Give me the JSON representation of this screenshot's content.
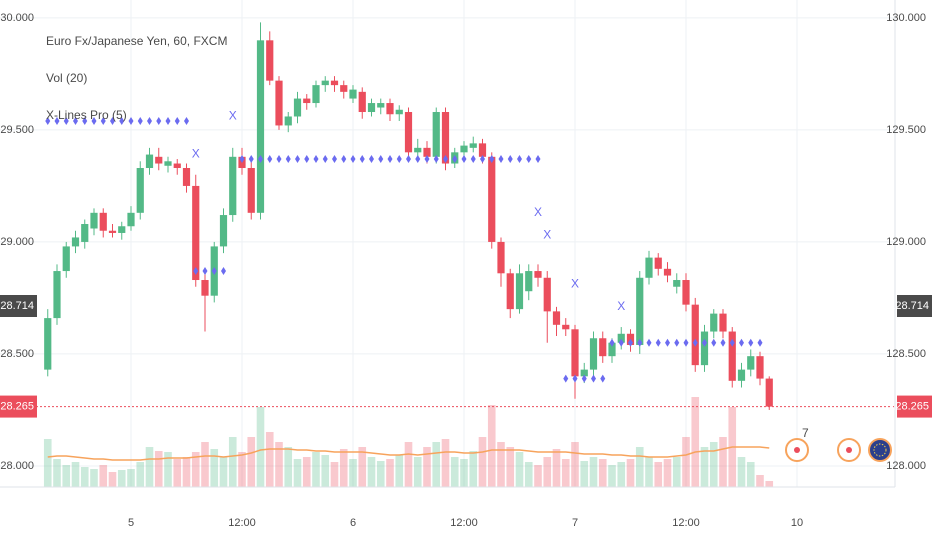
{
  "chart_data": {
    "type": "candlestick",
    "title": "Euro Fx/Japanese Yen, 60, FXCM",
    "volume_title": "Vol (20)",
    "indicator_title": "X-Lines Pro (5)",
    "event_badge": "7",
    "categories": [
      null,
      null,
      null,
      null,
      null,
      null,
      null,
      null,
      null,
      "5",
      null,
      null,
      null,
      null,
      null,
      null,
      null,
      null,
      null,
      null,
      null,
      "12:00",
      null,
      null,
      null,
      null,
      null,
      null,
      null,
      null,
      null,
      null,
      null,
      "6",
      null,
      null,
      null,
      null,
      null,
      null,
      null,
      null,
      null,
      null,
      null,
      "12:00",
      null,
      null,
      null,
      null,
      null,
      null,
      null,
      null,
      null,
      null,
      null,
      "7",
      null,
      null,
      null,
      null,
      null,
      null,
      null,
      null,
      null,
      null,
      null,
      "12:00",
      null,
      null,
      null,
      null,
      null,
      null,
      null,
      null,
      null,
      null,
      null,
      "10"
    ],
    "open": [
      128.43,
      128.66,
      128.87,
      128.98,
      129.0,
      129.06,
      129.13,
      129.05,
      129.04,
      129.07,
      129.13,
      129.33,
      129.38,
      129.34,
      129.35,
      129.33,
      129.25,
      128.83,
      128.76,
      128.98,
      129.12,
      129.38,
      129.33,
      129.13,
      129.9,
      129.72,
      129.52,
      129.56,
      129.64,
      129.62,
      129.7,
      129.72,
      129.7,
      129.64,
      129.67,
      129.58,
      129.6,
      129.62,
      129.57,
      129.58,
      129.4,
      129.42,
      129.38,
      129.58,
      129.35,
      129.4,
      129.42,
      129.44,
      129.38,
      129.0,
      128.86,
      128.7,
      128.78,
      128.87,
      128.84,
      128.69,
      128.63,
      128.61,
      128.4,
      128.43,
      128.57,
      128.49,
      128.55,
      128.59,
      128.54,
      128.84,
      128.93,
      128.88,
      128.8,
      128.83,
      128.72,
      128.45,
      128.6,
      128.68,
      128.6,
      128.38,
      128.43,
      128.49,
      128.39,
      null,
      null,
      null
    ],
    "high": [
      128.7,
      128.9,
      129.0,
      129.05,
      129.1,
      129.15,
      129.15,
      129.08,
      129.09,
      129.16,
      129.36,
      129.42,
      129.42,
      129.38,
      129.37,
      129.35,
      129.3,
      128.88,
      129.0,
      129.15,
      129.42,
      129.42,
      129.36,
      129.98,
      129.94,
      129.74,
      129.58,
      129.67,
      129.66,
      129.72,
      129.74,
      129.74,
      129.72,
      129.7,
      129.69,
      129.64,
      129.64,
      129.64,
      129.61,
      129.6,
      129.46,
      129.45,
      129.6,
      129.6,
      129.42,
      129.45,
      129.47,
      129.46,
      129.4,
      129.02,
      128.88,
      128.9,
      128.9,
      128.9,
      128.87,
      128.71,
      128.66,
      128.63,
      128.46,
      128.6,
      128.6,
      128.57,
      128.62,
      128.61,
      128.87,
      128.96,
      128.95,
      128.91,
      128.86,
      128.86,
      128.75,
      128.63,
      128.7,
      128.7,
      128.62,
      128.46,
      128.52,
      128.51,
      128.4,
      null,
      null,
      null
    ],
    "low": [
      128.4,
      128.63,
      128.84,
      128.95,
      128.97,
      129.03,
      129.02,
      129.02,
      129.01,
      129.05,
      129.1,
      129.3,
      129.32,
      129.31,
      129.3,
      129.22,
      128.8,
      128.6,
      128.73,
      128.95,
      129.09,
      129.3,
      129.1,
      129.1,
      129.7,
      129.5,
      129.49,
      129.53,
      129.59,
      129.6,
      129.67,
      129.67,
      129.64,
      129.62,
      129.55,
      129.56,
      129.57,
      129.54,
      129.54,
      129.37,
      129.37,
      129.35,
      129.35,
      129.32,
      129.33,
      129.37,
      129.4,
      129.35,
      128.97,
      128.8,
      128.66,
      128.68,
      128.74,
      128.8,
      128.55,
      128.58,
      128.58,
      128.3,
      128.37,
      128.4,
      128.46,
      128.46,
      128.52,
      128.51,
      128.5,
      128.81,
      128.85,
      128.82,
      128.77,
      128.69,
      128.42,
      128.42,
      128.57,
      128.57,
      128.35,
      128.35,
      128.4,
      128.36,
      128.25,
      null,
      null,
      null
    ],
    "close": [
      128.66,
      128.87,
      128.98,
      129.02,
      129.08,
      129.13,
      129.05,
      129.04,
      129.07,
      129.13,
      129.33,
      129.39,
      129.35,
      129.36,
      129.33,
      129.25,
      128.83,
      128.76,
      128.98,
      129.12,
      129.38,
      129.33,
      129.13,
      129.9,
      129.72,
      129.52,
      129.56,
      129.64,
      129.62,
      129.7,
      129.72,
      129.7,
      129.67,
      129.68,
      129.58,
      129.62,
      129.62,
      129.57,
      129.59,
      129.4,
      129.42,
      129.38,
      129.58,
      129.35,
      129.4,
      129.43,
      129.44,
      129.38,
      129.0,
      128.86,
      128.7,
      128.86,
      128.87,
      128.84,
      128.69,
      128.63,
      128.61,
      128.4,
      128.43,
      128.57,
      128.49,
      128.55,
      128.59,
      128.54,
      128.84,
      128.93,
      128.88,
      128.85,
      128.83,
      128.72,
      128.45,
      128.6,
      128.68,
      128.6,
      128.38,
      128.43,
      128.49,
      128.39,
      128.265,
      null,
      null,
      null
    ],
    "volume": [
      48,
      28,
      22,
      25,
      20,
      18,
      22,
      15,
      17,
      18,
      25,
      40,
      36,
      35,
      28,
      30,
      35,
      45,
      38,
      30,
      50,
      35,
      50,
      80,
      55,
      45,
      40,
      28,
      30,
      35,
      32,
      25,
      38,
      28,
      40,
      30,
      26,
      28,
      32,
      45,
      30,
      40,
      45,
      48,
      30,
      28,
      36,
      50,
      82,
      45,
      40,
      35,
      25,
      22,
      30,
      38,
      28,
      45,
      26,
      30,
      28,
      22,
      25,
      28,
      40,
      30,
      25,
      28,
      30,
      50,
      90,
      40,
      45,
      50,
      80,
      30,
      25,
      12,
      6,
      null,
      null,
      null
    ],
    "volume_ma": [
      30,
      31,
      31,
      30,
      29,
      28,
      28,
      27,
      27,
      27,
      27,
      28,
      28,
      29,
      29,
      29,
      30,
      31,
      31,
      30,
      31,
      32,
      34,
      37,
      38,
      38,
      38,
      37,
      37,
      36,
      36,
      35,
      35,
      35,
      35,
      34,
      33,
      32,
      32,
      33,
      32,
      33,
      34,
      35,
      35,
      34,
      34,
      35,
      37,
      37,
      37,
      37,
      36,
      35,
      35,
      35,
      35,
      34,
      33,
      33,
      33,
      32,
      32,
      31,
      31,
      30,
      30,
      30,
      31,
      32,
      35,
      36,
      36,
      38,
      40,
      40,
      40,
      40,
      39,
      null,
      null,
      null
    ],
    "levels": [
      129.54,
      129.54,
      129.54,
      129.54,
      129.54,
      129.54,
      129.54,
      129.54,
      129.54,
      129.54,
      129.54,
      129.54,
      129.54,
      129.54,
      129.54,
      129.54,
      128.87,
      128.87,
      128.87,
      128.87,
      null,
      129.37,
      129.37,
      129.37,
      129.37,
      129.37,
      129.37,
      129.37,
      129.37,
      129.37,
      129.37,
      129.37,
      129.37,
      129.37,
      129.37,
      129.37,
      129.37,
      129.37,
      129.37,
      129.37,
      129.37,
      129.37,
      129.37,
      129.37,
      129.37,
      129.37,
      129.37,
      129.37,
      129.37,
      129.37,
      129.37,
      129.37,
      129.37,
      129.37,
      null,
      null,
      128.39,
      128.39,
      128.39,
      128.39,
      128.39,
      128.55,
      128.55,
      128.55,
      128.55,
      128.55,
      128.55,
      128.55,
      128.55,
      128.55,
      128.55,
      128.55,
      128.55,
      128.55,
      128.55,
      128.55,
      128.55,
      128.55,
      null,
      null,
      null,
      null
    ],
    "x_marks": [
      null,
      null,
      null,
      null,
      null,
      null,
      null,
      null,
      null,
      null,
      null,
      null,
      null,
      null,
      null,
      null,
      129.39,
      null,
      null,
      null,
      129.56,
      null,
      null,
      null,
      null,
      null,
      null,
      null,
      null,
      null,
      null,
      null,
      null,
      null,
      null,
      null,
      null,
      null,
      null,
      null,
      null,
      null,
      null,
      null,
      null,
      null,
      null,
      null,
      null,
      null,
      null,
      null,
      null,
      129.13,
      129.03,
      null,
      null,
      128.81,
      null,
      null,
      null,
      null,
      128.71,
      null,
      null,
      null,
      null,
      null,
      null,
      null,
      null,
      null,
      null,
      null,
      null,
      null,
      null,
      null,
      null,
      null,
      null,
      null
    ],
    "x_mark_label": "X",
    "up_color": "#53b987",
    "down_color": "#eb4d5c",
    "ma_color": "#f7a35c",
    "indicator_color": "#6b6bf0",
    "ylim": [
      127.906,
      130.08
    ],
    "yticks": [
      {
        "value": 128,
        "label": "128.000"
      },
      {
        "value": 128.5,
        "label": "128.500"
      },
      {
        "value": 129,
        "label": "129.000"
      },
      {
        "value": 129.5,
        "label": "129.500"
      },
      {
        "value": 130,
        "label": "130.000"
      }
    ],
    "crosshair_price": {
      "value": 128.714,
      "label": "128.714"
    },
    "last_price": {
      "value": 128.265,
      "label": "128.265"
    },
    "grid": true
  }
}
